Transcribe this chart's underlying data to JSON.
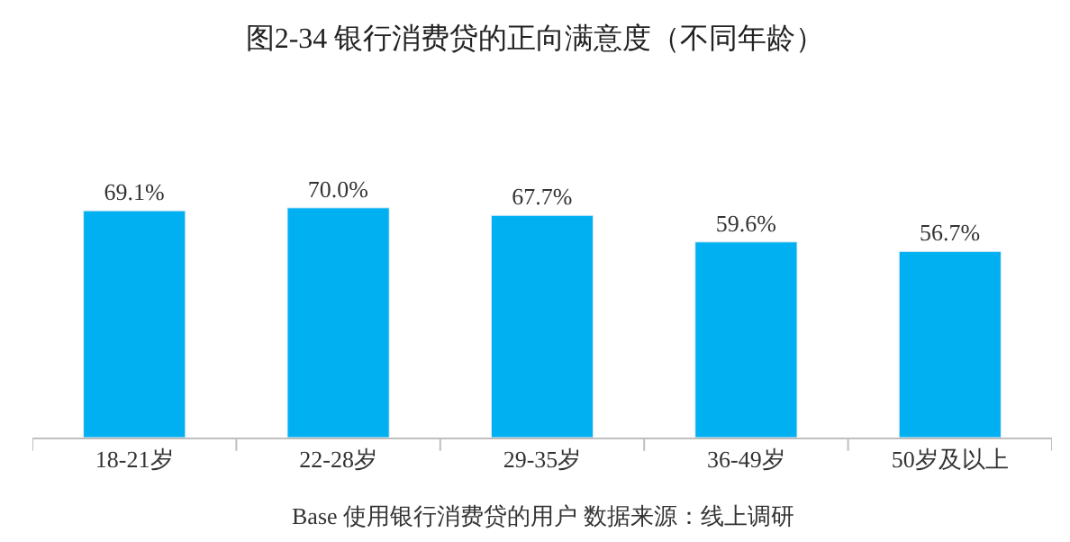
{
  "chart_data": {
    "type": "bar",
    "title": "图2-34 银行消费贷的正向满意度（不同年龄）",
    "categories": [
      "18-21岁",
      "22-28岁",
      "29-35岁",
      "36-49岁",
      "50岁及以上"
    ],
    "values": [
      69.1,
      70.0,
      67.7,
      59.6,
      56.7
    ],
    "value_labels": [
      "69.1%",
      "70.0%",
      "67.7%",
      "59.6%",
      "56.7%"
    ],
    "color": "#00b0f0",
    "annotations": [
      "Base 使用银行消费贷的用户 数据来源：线上调研"
    ]
  }
}
